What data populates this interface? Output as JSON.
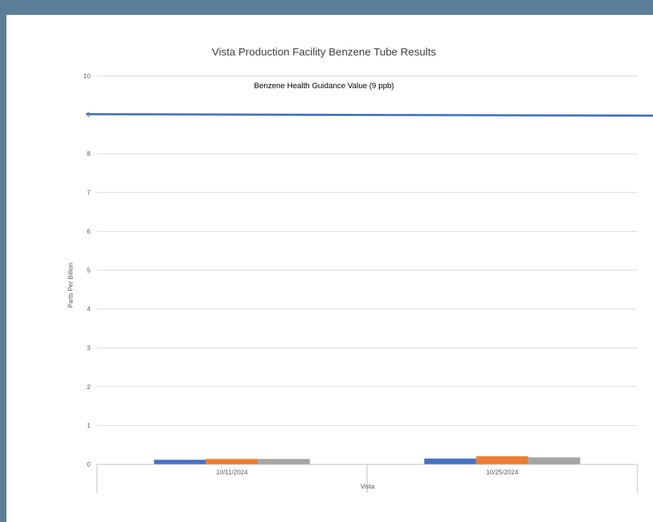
{
  "chart_data": {
    "type": "bar",
    "title": "Vista Production Facility Benzene Tube Results",
    "ylabel": "Parts Per Billion",
    "xlabel": "Vista",
    "ylim": [
      0,
      10
    ],
    "yticks": [
      "0",
      "1",
      "2",
      "3",
      "4",
      "5",
      "6",
      "7",
      "8",
      "9",
      "10"
    ],
    "categories": [
      "10/11/2024",
      "10/25/2024"
    ],
    "series": [
      {
        "values": [
          0.12,
          0.15
        ],
        "color": "#4472c4"
      },
      {
        "values": [
          0.14,
          0.21
        ],
        "color": "#ed7d31"
      },
      {
        "values": [
          0.14,
          0.18
        ],
        "color": "#a5a5a5"
      }
    ],
    "reference_line": {
      "value": 9,
      "label": "Benzene Health Guidance Value (9 ppb)",
      "color": "#4472c4"
    },
    "grid": true,
    "legend": "none"
  }
}
